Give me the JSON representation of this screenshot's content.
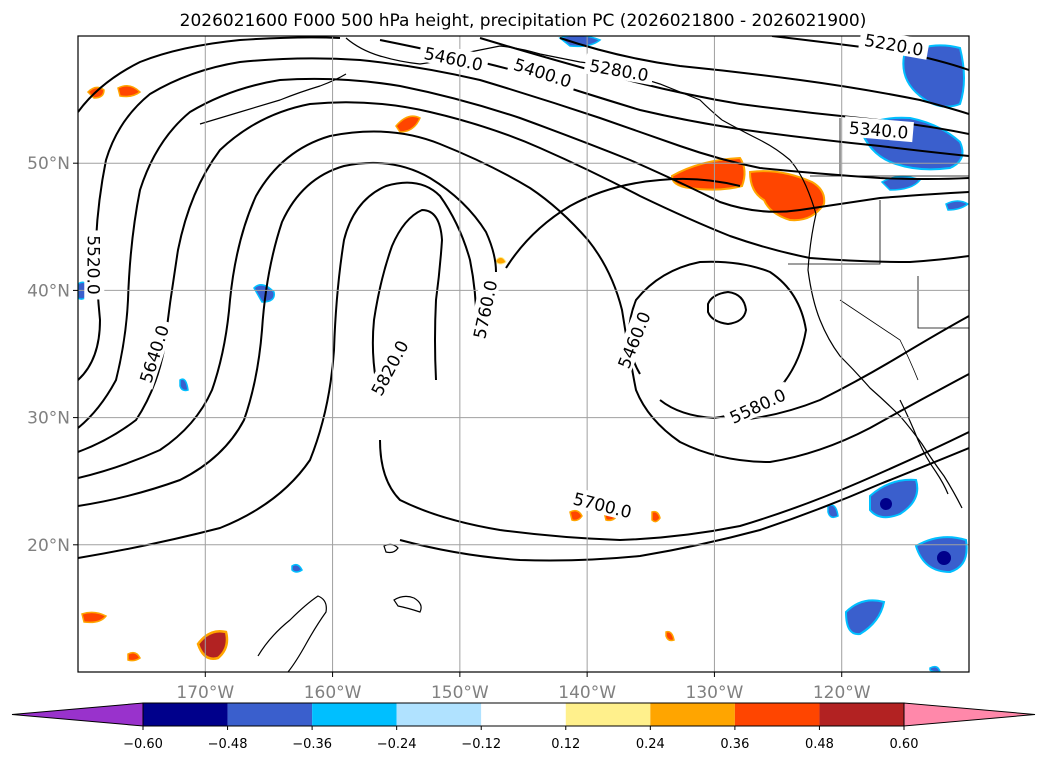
{
  "chart_data": {
    "type": "contour_map",
    "title": "2026021600 F000 500 hPa height, precipitation PC (2026021800 - 2026021900)",
    "projection": "plate_carree",
    "lon_range": [
      -180,
      -110
    ],
    "lat_range": [
      10,
      60
    ],
    "x_ticks": [
      {
        "lon": -170,
        "label": "170°W"
      },
      {
        "lon": -160,
        "label": "160°W"
      },
      {
        "lon": -150,
        "label": "150°W"
      },
      {
        "lon": -140,
        "label": "140°W"
      },
      {
        "lon": -130,
        "label": "130°W"
      },
      {
        "lon": -120,
        "label": "120°W"
      }
    ],
    "y_ticks": [
      {
        "lat": 50,
        "label": "50°N"
      },
      {
        "lat": 40,
        "label": "40°N"
      },
      {
        "lat": 30,
        "label": "30°N"
      },
      {
        "lat": 20,
        "label": "20°N"
      }
    ],
    "grid": true,
    "contour_labels": [
      {
        "text": "5460.0",
        "lon": -150.5,
        "lat": 58.2,
        "rot": 12
      },
      {
        "text": "5400.0",
        "lon": -143.5,
        "lat": 57.1,
        "rot": 18
      },
      {
        "text": "5280.0",
        "lon": -137.5,
        "lat": 57.3,
        "rot": 10
      },
      {
        "text": "5220.0",
        "lon": -115.9,
        "lat": 59.3,
        "rot": 10
      },
      {
        "text": "5340.0",
        "lon": -117.1,
        "lat": 52.6,
        "rot": 5
      },
      {
        "text": "5520.0",
        "lon": -178.8,
        "lat": 42.0,
        "rot": 90
      },
      {
        "text": "5640.0",
        "lon": -174.0,
        "lat": 35.0,
        "rot": -72
      },
      {
        "text": "5820.0",
        "lon": -155.5,
        "lat": 33.9,
        "rot": -62
      },
      {
        "text": "5760.0",
        "lon": -148.0,
        "lat": 38.5,
        "rot": -78
      },
      {
        "text": "5460.0",
        "lon": -136.3,
        "lat": 36.1,
        "rot": -68
      },
      {
        "text": "5580.0",
        "lon": -126.6,
        "lat": 30.9,
        "rot": -25
      },
      {
        "text": "5700.0",
        "lon": -138.8,
        "lat": 23.1,
        "rot": 14
      }
    ],
    "colorbar": {
      "ticks": [
        -0.6,
        -0.48,
        -0.36,
        -0.24,
        -0.12,
        0.12,
        0.24,
        0.36,
        0.48,
        0.6
      ],
      "tick_labels": [
        "−0.60",
        "−0.48",
        "−0.36",
        "−0.24",
        "−0.12",
        "0.12",
        "0.24",
        "0.36",
        "0.48",
        "0.60"
      ],
      "colors": [
        "#9932cc",
        "#00008b",
        "#3a5fcd",
        "#00bfff",
        "#b0e2ff",
        "#ffffff",
        "#fff08c",
        "#ffa500",
        "#ff4500",
        "#b22222",
        "#ff88aa"
      ],
      "extend": "both"
    }
  }
}
